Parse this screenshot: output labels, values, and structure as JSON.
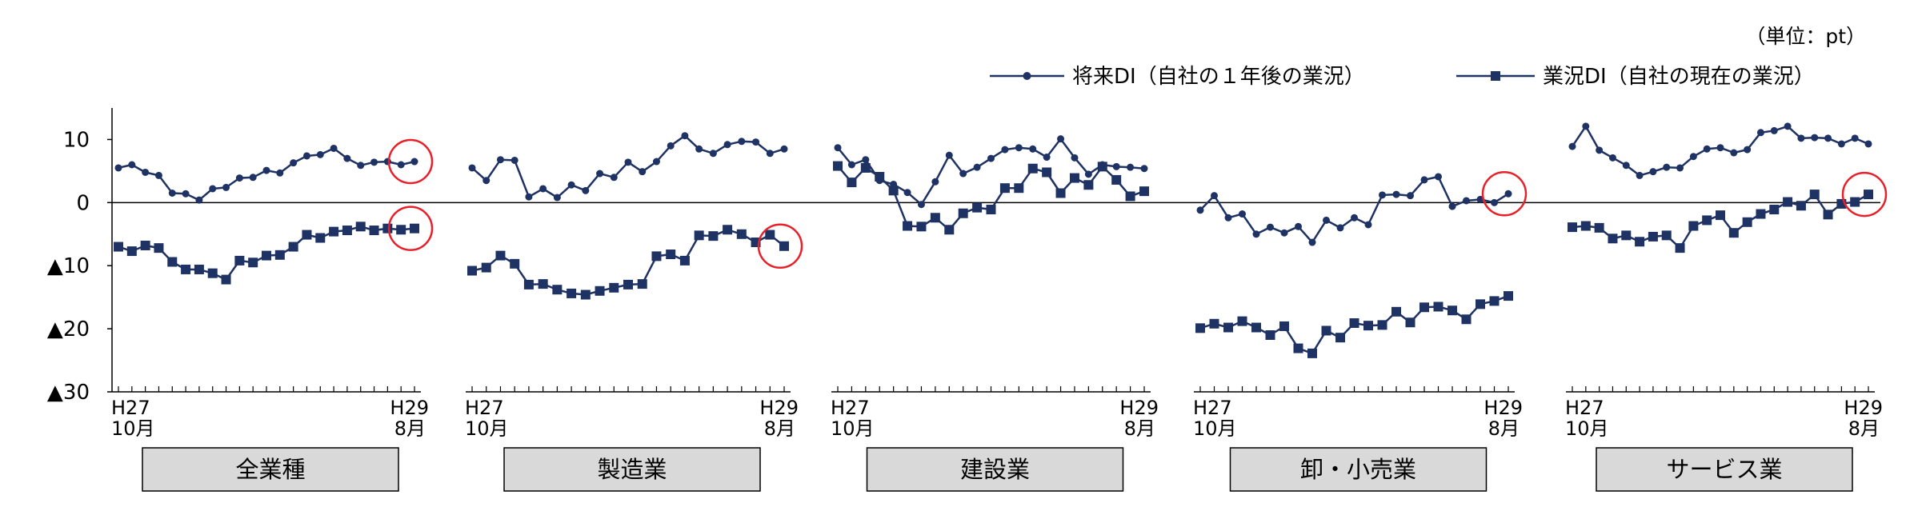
{
  "chart_data": {
    "type": "line",
    "unit_label": "（単位：pt）",
    "legend": [
      {
        "name": "将来DI（自社の１年後の業況）",
        "marker": "circle"
      },
      {
        "name": "業況DI（自社の現在の業況）",
        "marker": "square"
      }
    ],
    "legend_position": "top-right",
    "y_tick_labels": [
      "10",
      "0",
      "▲10",
      "▲20",
      "▲30"
    ],
    "y_tick_values": [
      10,
      0,
      -10,
      -20,
      -30
    ],
    "ylim": [
      -30,
      15
    ],
    "grid": false,
    "x_start_label": [
      "H27",
      "10月"
    ],
    "x_end_label": [
      "H29",
      "8月"
    ],
    "highlight_color": "#e8202a",
    "line_color": "#1f3264",
    "panels": [
      {
        "category": "全業種",
        "series": [
          {
            "name": "将来DI（自社の１年後の業況）",
            "values": [
              5.5,
              6.0,
              4.8,
              4.3,
              1.5,
              1.4,
              0.4,
              2.2,
              2.4,
              3.9,
              4.0,
              5.1,
              4.7,
              6.3,
              7.4,
              7.6,
              8.6,
              7.0,
              5.9,
              6.4,
              6.5,
              6.0,
              6.5
            ]
          },
          {
            "name": "業況DI（自社の現在の業況）",
            "values": [
              -7.0,
              -7.7,
              -6.8,
              -7.2,
              -9.4,
              -10.6,
              -10.6,
              -11.2,
              -12.2,
              -9.2,
              -9.5,
              -8.4,
              -8.3,
              -7.0,
              -5.1,
              -5.6,
              -4.6,
              -4.4,
              -3.8,
              -4.4,
              -4.1,
              -4.3,
              -4.1
            ]
          }
        ],
        "highlight": {
          "future": true,
          "current": true
        }
      },
      {
        "category": "製造業",
        "series": [
          {
            "name": "将来DI（自社の１年後の業況）",
            "values": [
              5.5,
              3.5,
              6.8,
              6.7,
              0.9,
              2.2,
              0.8,
              2.8,
              1.9,
              4.6,
              4.0,
              6.4,
              4.9,
              6.5,
              9.0,
              10.6,
              8.5,
              7.8,
              9.2,
              9.7,
              9.6,
              7.8,
              8.5
            ]
          },
          {
            "name": "業況DI（自社の現在の業況）",
            "values": [
              -10.8,
              -10.3,
              -8.4,
              -9.7,
              -13.0,
              -12.9,
              -13.8,
              -14.4,
              -14.6,
              -14.0,
              -13.5,
              -13.0,
              -12.9,
              -8.5,
              -8.2,
              -9.2,
              -5.2,
              -5.3,
              -4.3,
              -5.0,
              -6.3,
              -5.1,
              -6.9
            ]
          }
        ],
        "highlight": {
          "future": false,
          "current": true
        }
      },
      {
        "category": "建設業",
        "series": [
          {
            "name": "将来DI（自社の１年後の業況）",
            "values": [
              8.7,
              6.0,
              6.8,
              3.5,
              2.9,
              1.6,
              -0.3,
              3.3,
              7.5,
              4.6,
              5.6,
              7.0,
              8.4,
              8.7,
              8.5,
              7.2,
              10.1,
              7.1,
              4.5,
              6.0,
              5.7,
              5.6,
              5.4
            ]
          },
          {
            "name": "業況DI（自社の現在の業況）",
            "values": [
              5.8,
              3.2,
              5.5,
              4.1,
              1.9,
              -3.7,
              -3.8,
              -2.4,
              -4.3,
              -1.7,
              -0.8,
              -1.1,
              2.3,
              2.3,
              5.4,
              4.8,
              1.5,
              3.9,
              2.8,
              5.7,
              3.6,
              1.0,
              1.8
            ]
          }
        ],
        "highlight": {
          "future": false,
          "current": false
        }
      },
      {
        "category": "卸・小売業",
        "series": [
          {
            "name": "将来DI（自社の１年後の業況）",
            "values": [
              -1.2,
              1.1,
              -2.4,
              -1.8,
              -5.0,
              -3.9,
              -4.8,
              -3.8,
              -6.3,
              -2.8,
              -4.0,
              -2.4,
              -3.5,
              1.2,
              1.3,
              1.1,
              3.6,
              4.1,
              -0.6,
              0.3,
              0.5,
              0.0,
              1.4
            ]
          },
          {
            "name": "業況DI（自社の現在の業況）",
            "values": [
              -19.9,
              -19.2,
              -19.8,
              -18.8,
              -19.8,
              -21.0,
              -19.6,
              -23.1,
              -23.9,
              -20.3,
              -21.4,
              -19.1,
              -19.5,
              -19.4,
              -17.3,
              -19.0,
              -16.6,
              -16.5,
              -17.1,
              -18.5,
              -16.1,
              -15.6,
              -14.8
            ]
          }
        ],
        "highlight": {
          "future": true,
          "current": false
        }
      },
      {
        "category": "サービス業",
        "series": [
          {
            "name": "将来DI（自社の１年後の業況）",
            "values": [
              8.9,
              12.1,
              8.3,
              7.1,
              5.9,
              4.3,
              4.9,
              5.6,
              5.5,
              7.3,
              8.5,
              8.7,
              7.9,
              8.4,
              11.1,
              11.4,
              12.1,
              10.2,
              10.3,
              10.2,
              9.3,
              10.2,
              9.3
            ]
          },
          {
            "name": "業況DI（自社の現在の業況）",
            "values": [
              -3.9,
              -3.7,
              -4.0,
              -5.7,
              -5.2,
              -6.2,
              -5.4,
              -5.2,
              -7.2,
              -3.7,
              -2.8,
              -2.0,
              -4.8,
              -3.1,
              -1.8,
              -1.1,
              0.1,
              -0.5,
              1.3,
              -1.9,
              -0.2,
              0.1,
              1.3
            ]
          }
        ],
        "highlight": {
          "future": false,
          "current": true
        }
      }
    ]
  }
}
